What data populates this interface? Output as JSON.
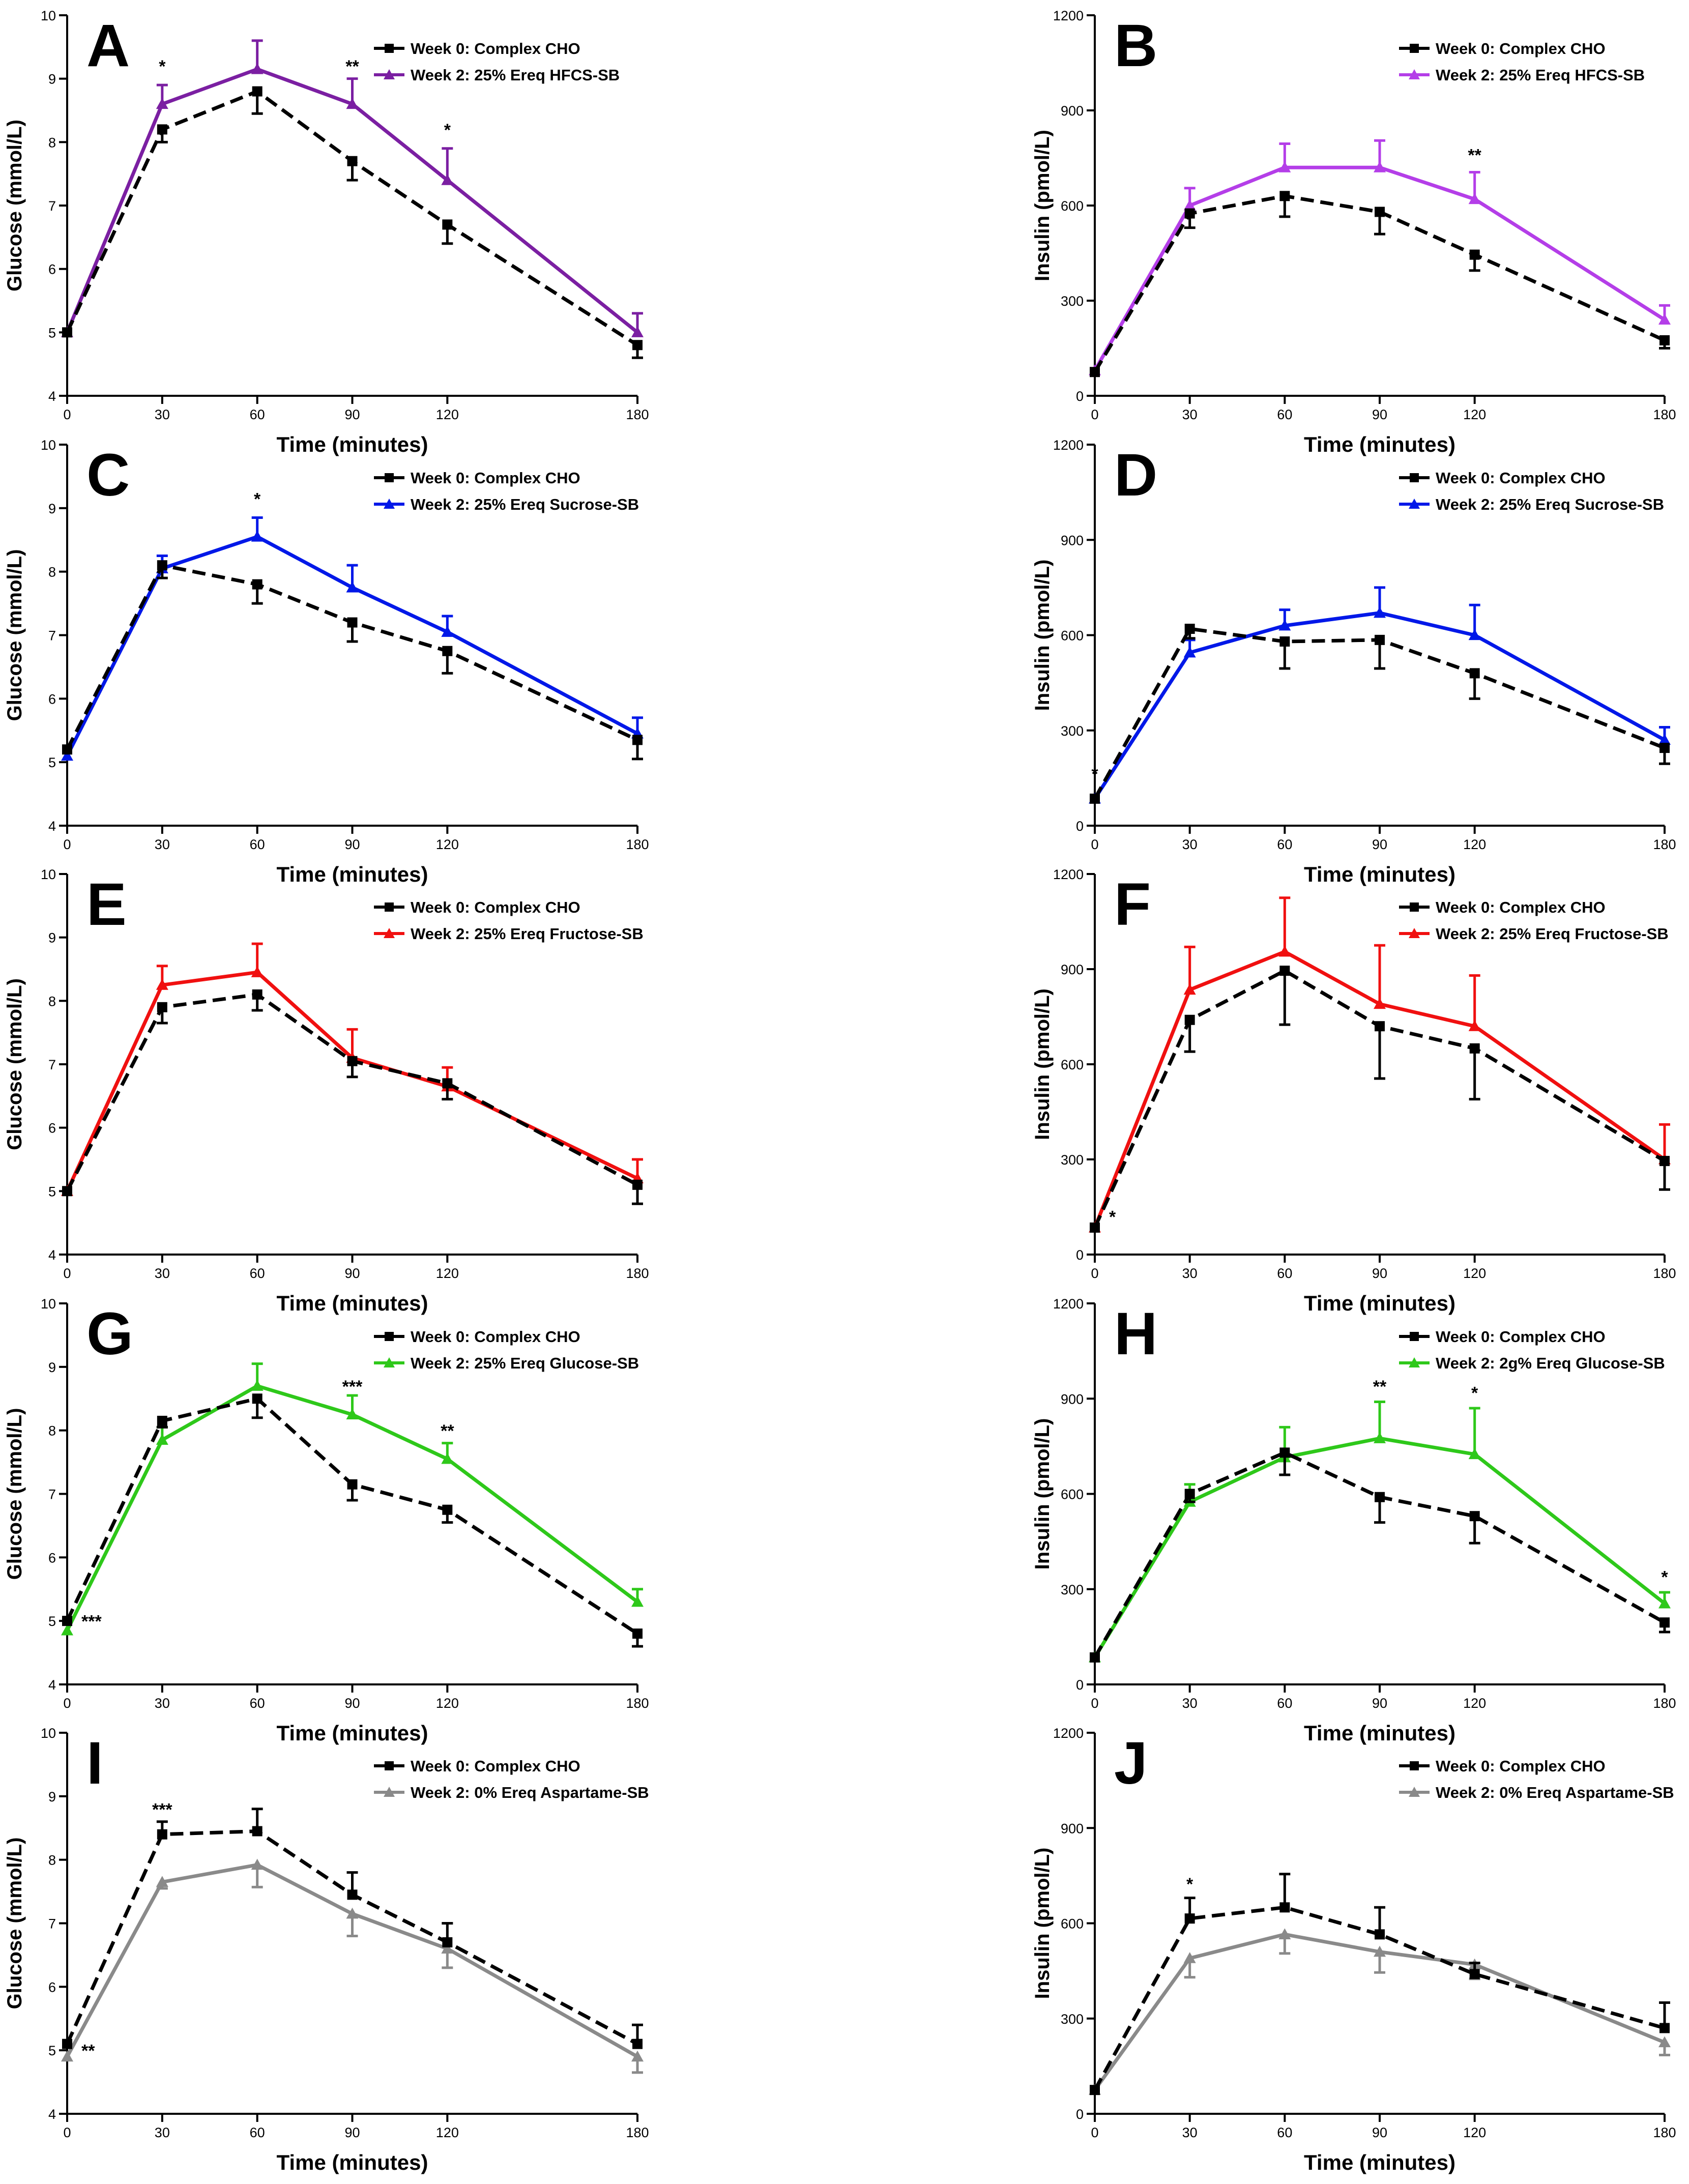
{
  "figure": {
    "baseline_label": "Week 0: Complex CHO"
  },
  "chart_data": [
    {
      "type": "line",
      "panel": "A",
      "title": "",
      "xlabel": "Time (minutes)",
      "ylabel": "Glucose (mmol/L)",
      "ylim": [
        4,
        10
      ],
      "yticks": [
        4,
        5,
        6,
        7,
        8,
        9,
        10
      ],
      "x": [
        0,
        30,
        60,
        90,
        120,
        180
      ],
      "series": [
        {
          "name": "Week 0: Complex CHO",
          "color": "#000000",
          "style": "dashed",
          "marker": "square",
          "values": [
            5.0,
            8.2,
            8.8,
            7.7,
            6.7,
            4.8
          ],
          "errors": [
            0.05,
            0.2,
            0.35,
            0.3,
            0.3,
            0.2
          ],
          "err_dir": -1
        },
        {
          "name": "Week 2: 25% Ereq HFCS-SB",
          "color": "#7b1fa2",
          "style": "solid",
          "marker": "triangle",
          "values": [
            5.0,
            8.6,
            9.15,
            8.6,
            7.4,
            5.0
          ],
          "errors": [
            0.05,
            0.3,
            0.45,
            0.4,
            0.5,
            0.3
          ],
          "err_dir": 1
        }
      ],
      "annotations": [
        {
          "x": 30,
          "y": 9.1,
          "text": "*"
        },
        {
          "x": 90,
          "y": 9.1,
          "text": "**"
        },
        {
          "x": 120,
          "y": 8.1,
          "text": "*"
        }
      ]
    },
    {
      "type": "line",
      "panel": "B",
      "title": "",
      "xlabel": "Time (minutes)",
      "ylabel": "Insulin (pmol/L)",
      "ylim": [
        0,
        1200
      ],
      "yticks": [
        0,
        300,
        600,
        900,
        1200
      ],
      "x": [
        0,
        30,
        60,
        90,
        120,
        180
      ],
      "series": [
        {
          "name": "Week 0: Complex CHO",
          "color": "#000000",
          "style": "dashed",
          "marker": "square",
          "values": [
            75,
            575,
            630,
            580,
            445,
            175
          ],
          "errors": [
            5,
            45,
            65,
            70,
            50,
            25
          ],
          "err_dir": -1
        },
        {
          "name": "Week 2: 25% Ereq HFCS-SB",
          "color": "#b43ee8",
          "style": "solid",
          "marker": "triangle",
          "values": [
            80,
            600,
            720,
            720,
            620,
            240
          ],
          "errors": [
            5,
            55,
            75,
            85,
            85,
            45
          ],
          "err_dir": 1
        }
      ],
      "annotations": [
        {
          "x": 120,
          "y": 740,
          "text": "**"
        }
      ]
    },
    {
      "type": "line",
      "panel": "C",
      "title": "",
      "xlabel": "Time (minutes)",
      "ylabel": "Glucose (mmol/L)",
      "ylim": [
        4,
        10
      ],
      "yticks": [
        4,
        5,
        6,
        7,
        8,
        9,
        10
      ],
      "x": [
        0,
        30,
        60,
        90,
        120,
        180
      ],
      "series": [
        {
          "name": "Week 0: Complex CHO",
          "color": "#000000",
          "style": "dashed",
          "marker": "square",
          "values": [
            5.2,
            8.1,
            7.8,
            7.2,
            6.75,
            5.35
          ],
          "errors": [
            0.05,
            0.2,
            0.3,
            0.3,
            0.35,
            0.3
          ],
          "err_dir": -1
        },
        {
          "name": "Week 2: 25% Ereq Sucrose-SB",
          "color": "#0018e8",
          "style": "solid",
          "marker": "triangle",
          "values": [
            5.1,
            8.05,
            8.55,
            7.75,
            7.05,
            5.45
          ],
          "errors": [
            0.05,
            0.2,
            0.3,
            0.35,
            0.25,
            0.25
          ],
          "err_dir": 1
        }
      ],
      "annotations": [
        {
          "x": 60,
          "y": 9.05,
          "text": "*"
        }
      ]
    },
    {
      "type": "line",
      "panel": "D",
      "title": "",
      "xlabel": "Time (minutes)",
      "ylabel": "Insulin (pmol/L)",
      "ylim": [
        0,
        1200
      ],
      "yticks": [
        0,
        300,
        600,
        900,
        1200
      ],
      "x": [
        0,
        30,
        60,
        90,
        120,
        180
      ],
      "series": [
        {
          "name": "Week 0: Complex CHO",
          "color": "#000000",
          "style": "dashed",
          "marker": "square",
          "values": [
            85,
            620,
            580,
            585,
            480,
            245
          ],
          "errors": [
            5,
            30,
            85,
            90,
            80,
            50
          ],
          "err_dir": -1
        },
        {
          "name": "Week 2: 25% Ereq Sucrose-SB",
          "color": "#0018e8",
          "style": "solid",
          "marker": "triangle",
          "values": [
            85,
            545,
            630,
            670,
            600,
            270
          ],
          "errors": [
            5,
            40,
            50,
            80,
            95,
            40
          ],
          "err_dir": 1
        }
      ],
      "annotations": [
        {
          "x": 0,
          "y": 145,
          "text": "*"
        }
      ]
    },
    {
      "type": "line",
      "panel": "E",
      "title": "",
      "xlabel": "Time (minutes)",
      "ylabel": "Glucose (mmol/L)",
      "ylim": [
        4,
        10
      ],
      "yticks": [
        4,
        5,
        6,
        7,
        8,
        9,
        10
      ],
      "x": [
        0,
        30,
        60,
        90,
        120,
        180
      ],
      "series": [
        {
          "name": "Week 0: Complex CHO",
          "color": "#000000",
          "style": "dashed",
          "marker": "square",
          "values": [
            5.0,
            7.9,
            8.1,
            7.05,
            6.7,
            5.1
          ],
          "errors": [
            0.05,
            0.25,
            0.25,
            0.25,
            0.25,
            0.3
          ],
          "err_dir": -1
        },
        {
          "name": "Week 2: 25% Ereq Fructose-SB",
          "color": "#f01010",
          "style": "solid",
          "marker": "triangle",
          "values": [
            5.0,
            8.25,
            8.45,
            7.1,
            6.65,
            5.2
          ],
          "errors": [
            0.05,
            0.3,
            0.45,
            0.45,
            0.3,
            0.3
          ],
          "err_dir": 1
        }
      ],
      "annotations": []
    },
    {
      "type": "line",
      "panel": "F",
      "title": "",
      "xlabel": "Time (minutes)",
      "ylabel": "Insulin (pmol/L)",
      "ylim": [
        0,
        1200
      ],
      "yticks": [
        0,
        300,
        600,
        900,
        1200
      ],
      "x": [
        0,
        30,
        60,
        90,
        120,
        180
      ],
      "series": [
        {
          "name": "Week 0: Complex CHO",
          "color": "#000000",
          "style": "dashed",
          "marker": "square",
          "values": [
            85,
            740,
            895,
            720,
            650,
            295
          ],
          "errors": [
            5,
            100,
            170,
            165,
            160,
            90
          ],
          "err_dir": -1
        },
        {
          "name": "Week 2: 25% Ereq Fructose-SB",
          "color": "#f01010",
          "style": "solid",
          "marker": "triangle",
          "values": [
            85,
            835,
            955,
            790,
            720,
            300
          ],
          "errors": [
            5,
            135,
            170,
            185,
            160,
            110
          ],
          "err_dir": 1
        }
      ],
      "annotations": [
        {
          "x": 0,
          "y": 100,
          "text": "*",
          "dx": 1
        }
      ]
    },
    {
      "type": "line",
      "panel": "G",
      "title": "",
      "xlabel": "Time (minutes)",
      "ylabel": "Glucose (mmol/L)",
      "ylim": [
        4,
        10
      ],
      "yticks": [
        4,
        5,
        6,
        7,
        8,
        9,
        10
      ],
      "x": [
        0,
        30,
        60,
        90,
        120,
        180
      ],
      "series": [
        {
          "name": "Week 0: Complex CHO",
          "color": "#000000",
          "style": "dashed",
          "marker": "square",
          "values": [
            5.0,
            8.15,
            8.5,
            7.15,
            6.75,
            4.8
          ],
          "errors": [
            0.05,
            0.1,
            0.3,
            0.25,
            0.2,
            0.2
          ],
          "err_dir": -1
        },
        {
          "name": "Week 2: 25% Ereq Glucose-SB",
          "color": "#2ec81a",
          "style": "solid",
          "marker": "triangle",
          "values": [
            4.85,
            7.85,
            8.7,
            8.25,
            7.55,
            5.3
          ],
          "errors": [
            0.05,
            0.2,
            0.35,
            0.3,
            0.25,
            0.2
          ],
          "err_dir": 1
        }
      ],
      "annotations": [
        {
          "x": 90,
          "y": 8.6,
          "text": "***"
        },
        {
          "x": 120,
          "y": 7.9,
          "text": "**"
        },
        {
          "x": 0,
          "y": 4.9,
          "text": "***",
          "dx": 1
        }
      ]
    },
    {
      "type": "line",
      "panel": "H",
      "title": "",
      "xlabel": "Time (minutes)",
      "ylabel": "Insulin (pmol/L)",
      "ylim": [
        0,
        1200
      ],
      "yticks": [
        0,
        300,
        600,
        900,
        1200
      ],
      "x": [
        0,
        30,
        60,
        90,
        120,
        180
      ],
      "series": [
        {
          "name": "Week 0: Complex CHO",
          "color": "#000000",
          "style": "dashed",
          "marker": "square",
          "values": [
            85,
            600,
            730,
            590,
            530,
            195
          ],
          "errors": [
            5,
            25,
            70,
            80,
            85,
            30
          ],
          "err_dir": -1
        },
        {
          "name": "Week 2: 2g% Ereq Glucose-SB",
          "color": "#2ec81a",
          "style": "solid",
          "marker": "triangle",
          "values": [
            85,
            575,
            715,
            775,
            725,
            255
          ],
          "errors": [
            5,
            55,
            95,
            115,
            145,
            35
          ],
          "err_dir": 1
        }
      ],
      "annotations": [
        {
          "x": 90,
          "y": 920,
          "text": "**"
        },
        {
          "x": 120,
          "y": 900,
          "text": "*"
        },
        {
          "x": 180,
          "y": 320,
          "text": "*"
        }
      ]
    },
    {
      "type": "line",
      "panel": "I",
      "title": "",
      "xlabel": "Time (minutes)",
      "ylabel": "Glucose (mmol/L)",
      "ylim": [
        4,
        10
      ],
      "yticks": [
        4,
        5,
        6,
        7,
        8,
        9,
        10
      ],
      "x": [
        0,
        30,
        60,
        90,
        120,
        180
      ],
      "series": [
        {
          "name": "Week 0: Complex CHO",
          "color": "#000000",
          "style": "dashed",
          "marker": "square",
          "values": [
            5.1,
            8.4,
            8.45,
            7.45,
            6.7,
            5.1
          ],
          "errors": [
            0.05,
            0.2,
            0.35,
            0.35,
            0.3,
            0.3
          ],
          "err_dir": 1
        },
        {
          "name": "Week 2: 0% Ereq Aspartame-SB",
          "color": "#8a8a8a",
          "style": "solid",
          "marker": "triangle",
          "values": [
            4.9,
            7.65,
            7.92,
            7.15,
            6.6,
            4.9
          ],
          "errors": [
            0.05,
            0.1,
            0.35,
            0.35,
            0.3,
            0.25
          ],
          "err_dir": -1
        }
      ],
      "annotations": [
        {
          "x": 30,
          "y": 8.7,
          "text": "***"
        },
        {
          "x": 0,
          "y": 4.9,
          "text": "**",
          "dx": 1
        }
      ]
    },
    {
      "type": "line",
      "panel": "J",
      "title": "",
      "xlabel": "Time (minutes)",
      "ylabel": "Insulin (pmol/L)",
      "ylim": [
        0,
        1200
      ],
      "yticks": [
        0,
        300,
        600,
        900,
        1200
      ],
      "x": [
        0,
        30,
        60,
        90,
        120,
        180
      ],
      "series": [
        {
          "name": "Week 0: Complex CHO",
          "color": "#000000",
          "style": "dashed",
          "marker": "square",
          "values": [
            75,
            615,
            650,
            565,
            440,
            270
          ],
          "errors": [
            5,
            65,
            105,
            85,
            35,
            80
          ],
          "err_dir": 1
        },
        {
          "name": "Week 2: 0% Ereq Aspartame-SB",
          "color": "#8a8a8a",
          "style": "solid",
          "marker": "triangle",
          "values": [
            75,
            490,
            565,
            510,
            470,
            225
          ],
          "errors": [
            5,
            60,
            60,
            65,
            45,
            40
          ],
          "err_dir": -1
        }
      ],
      "annotations": [
        {
          "x": 30,
          "y": 705,
          "text": "*"
        }
      ]
    }
  ]
}
